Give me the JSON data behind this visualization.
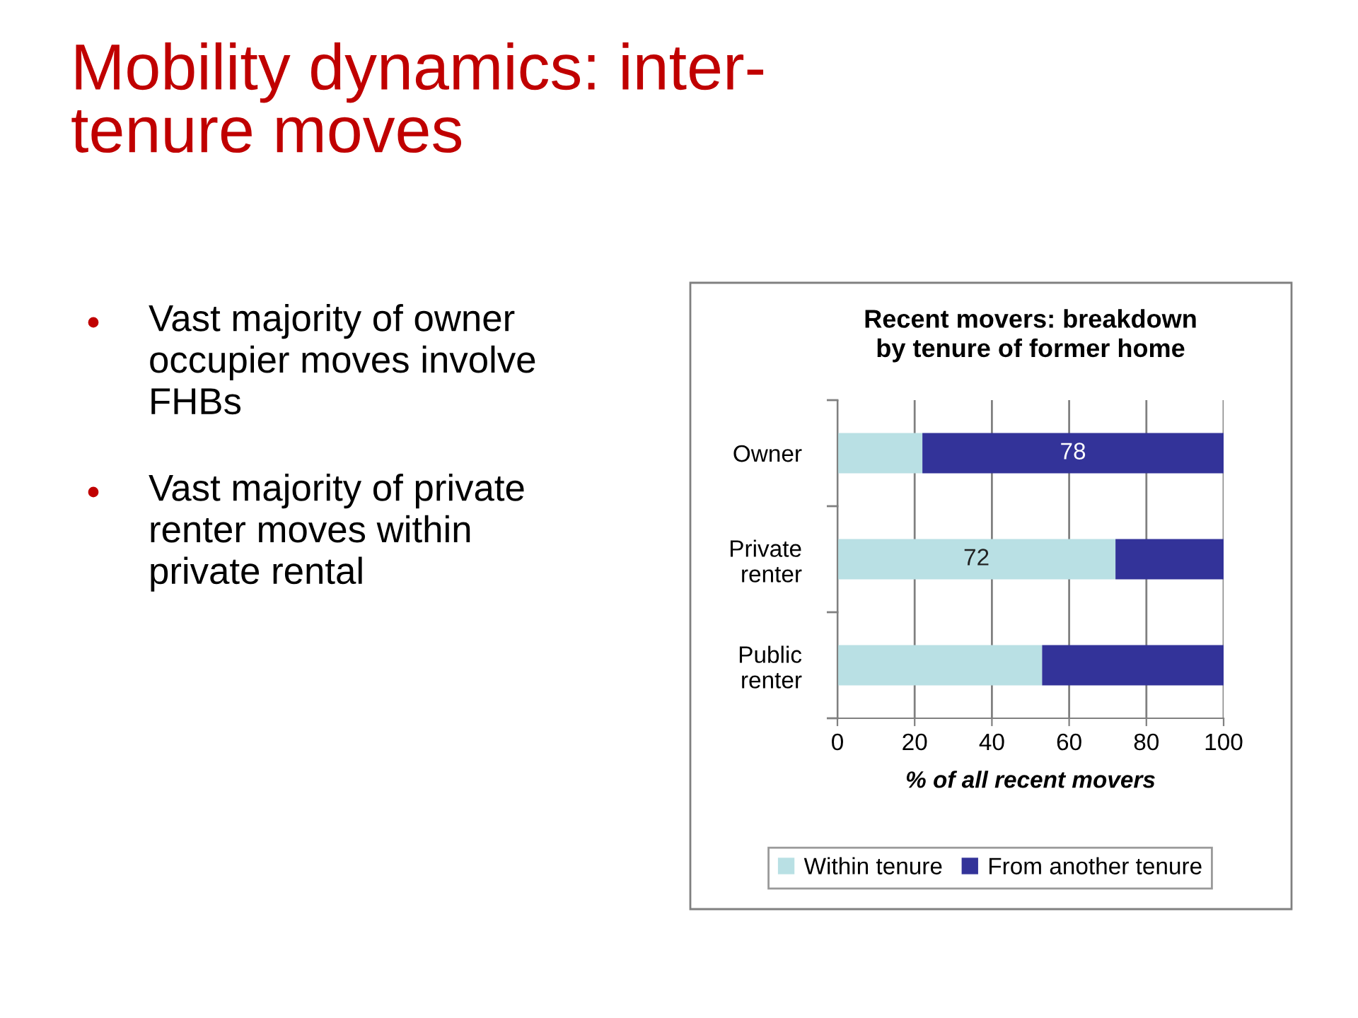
{
  "chart_data": {
    "type": "bar",
    "orientation": "horizontal",
    "stacked": true,
    "title": "Recent movers: breakdown\nby tenure of former home",
    "xlabel": "% of all recent movers",
    "categories": [
      "Owner",
      "Private\nrenter",
      "Public\nrenter"
    ],
    "series": [
      {
        "name": "Within tenure",
        "color": "#b9e0e4",
        "values": [
          22,
          72,
          53
        ],
        "value_labels": [
          null,
          "72",
          null
        ]
      },
      {
        "name": "From another tenure",
        "color": "#333399",
        "values": [
          78,
          28,
          47
        ],
        "value_labels": [
          "78",
          null,
          null
        ]
      }
    ],
    "xlim": [
      0,
      100
    ],
    "xticks": [
      0,
      20,
      40,
      60,
      80,
      100
    ],
    "grid": "x",
    "legend": "bottom",
    "annotations": [
      "Mobility dynamics: inter-\ntenure moves",
      "Vast majority of owner\noccupier moves involve\nFHBs",
      "Vast majority of private\nrenter moves within\nprivate rental"
    ]
  }
}
